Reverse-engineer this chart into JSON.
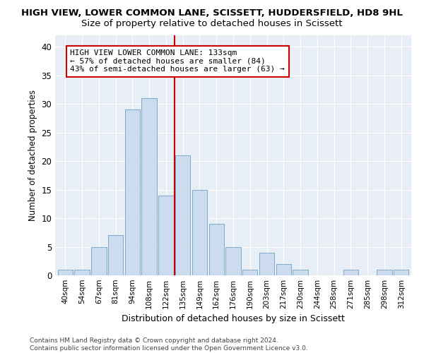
{
  "title": "HIGH VIEW, LOWER COMMON LANE, SCISSETT, HUDDERSFIELD, HD8 9HL",
  "subtitle": "Size of property relative to detached houses in Scissett",
  "xlabel": "Distribution of detached houses by size in Scissett",
  "ylabel": "Number of detached properties",
  "categories": [
    "40sqm",
    "54sqm",
    "67sqm",
    "81sqm",
    "94sqm",
    "108sqm",
    "122sqm",
    "135sqm",
    "149sqm",
    "162sqm",
    "176sqm",
    "190sqm",
    "203sqm",
    "217sqm",
    "230sqm",
    "244sqm",
    "258sqm",
    "271sqm",
    "285sqm",
    "298sqm",
    "312sqm"
  ],
  "values": [
    1,
    1,
    5,
    7,
    29,
    31,
    14,
    21,
    15,
    9,
    5,
    1,
    4,
    2,
    1,
    0,
    0,
    1,
    0,
    1,
    1
  ],
  "bar_color": "#ccdcee",
  "bar_edge_color": "#7aaacc",
  "highlight_label": "HIGH VIEW LOWER COMMON LANE: 133sqm\n← 57% of detached houses are smaller (84)\n43% of semi-detached houses are larger (63) →",
  "vline_color": "#cc0000",
  "ylim": [
    0,
    42
  ],
  "yticks": [
    0,
    5,
    10,
    15,
    20,
    25,
    30,
    35,
    40
  ],
  "footnote": "Contains HM Land Registry data © Crown copyright and database right 2024.\nContains public sector information licensed under the Open Government Licence v3.0.",
  "fig_bg_color": "#ffffff",
  "plot_bg_color": "#e8eef5",
  "grid_color": "#ffffff",
  "title_fontsize": 9.5,
  "subtitle_fontsize": 9.5,
  "annotation_fontsize": 8.0,
  "vline_x": 6.5
}
